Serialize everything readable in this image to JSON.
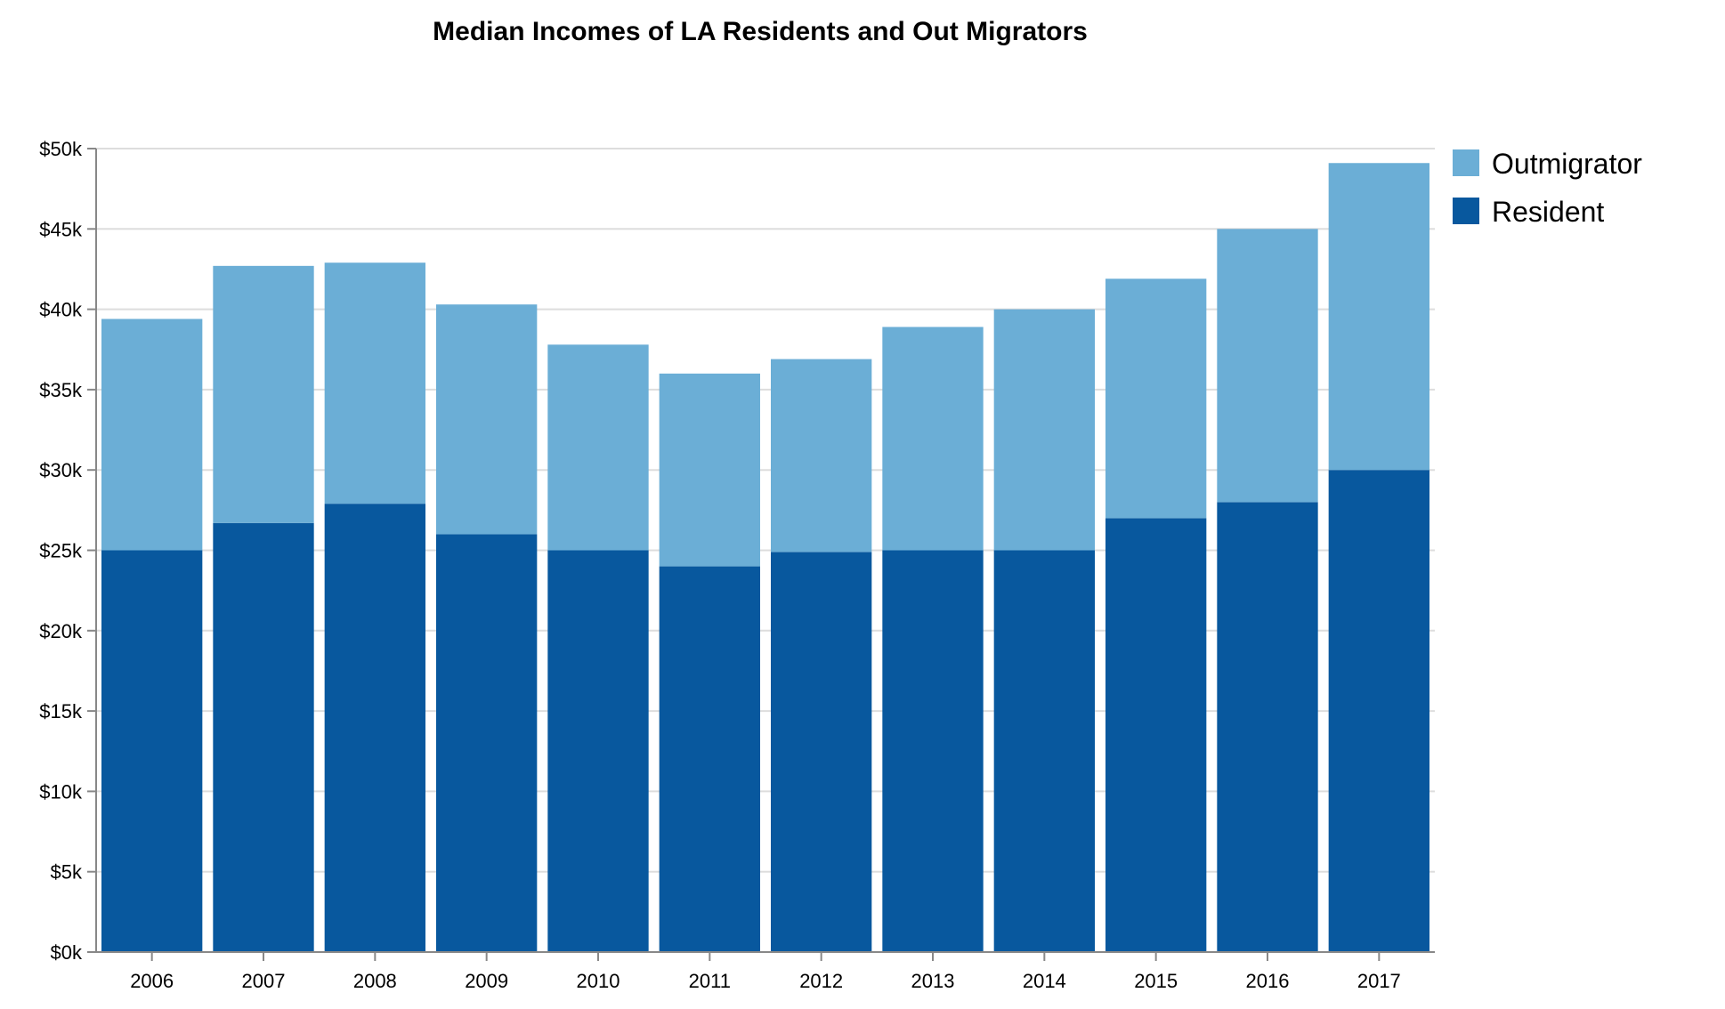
{
  "chart_data": {
    "type": "bar",
    "stacked": true,
    "title": "Median Incomes of LA Residents and Out Migrators",
    "xlabel": "",
    "ylabel": "",
    "categories": [
      "2006",
      "2007",
      "2008",
      "2009",
      "2010",
      "2011",
      "2012",
      "2013",
      "2014",
      "2015",
      "2016",
      "2017"
    ],
    "series": [
      {
        "name": "Resident",
        "color": "#08589e",
        "values": [
          25000,
          26700,
          27900,
          26000,
          25000,
          24000,
          24900,
          25000,
          25000,
          27000,
          28000,
          30000
        ]
      },
      {
        "name": "Outmigrator",
        "color": "#6baed6",
        "values": [
          14400,
          16000,
          15000,
          14300,
          12800,
          12000,
          12000,
          13900,
          15000,
          14900,
          17000,
          19100
        ]
      }
    ],
    "ylim": [
      0,
      50000
    ],
    "yticks": [
      0,
      5000,
      10000,
      15000,
      20000,
      25000,
      30000,
      35000,
      40000,
      45000,
      50000
    ],
    "ytick_labels": [
      "$0k",
      "$5k",
      "$10k",
      "$15k",
      "$20k",
      "$25k",
      "$30k",
      "$35k",
      "$40k",
      "$45k",
      "$50k"
    ],
    "grid": true,
    "legend": {
      "position": "top-right",
      "entries": [
        {
          "label": "Outmigrator",
          "color": "#6baed6"
        },
        {
          "label": "Resident",
          "color": "#08589e"
        }
      ]
    }
  }
}
